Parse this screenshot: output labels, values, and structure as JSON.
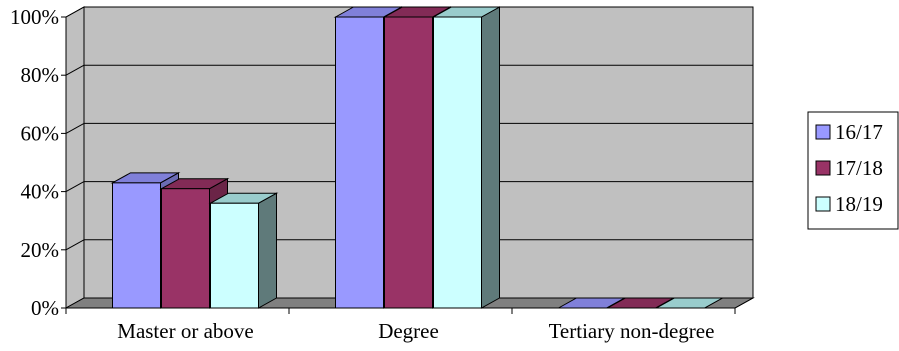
{
  "chart_data": {
    "type": "bar",
    "style": "3d-clustered-column",
    "categories": [
      "Master or above",
      "Degree",
      "Tertiary non-degree"
    ],
    "series": [
      {
        "name": "16/17",
        "values": [
          43,
          100,
          0
        ],
        "color": "#9999FF",
        "side_color": "#6B6BB3",
        "top_color": "#8080D9"
      },
      {
        "name": "17/18",
        "values": [
          41,
          100,
          0
        ],
        "color": "#993366",
        "side_color": "#6B2447",
        "top_color": "#822B56"
      },
      {
        "name": "18/19",
        "values": [
          36,
          100,
          0
        ],
        "color": "#CCFFFF",
        "side_color": "#5F7A7A",
        "top_color": "#99CCCC"
      }
    ],
    "ylim": [
      0,
      100
    ],
    "yticks": [
      "0%",
      "20%",
      "40%",
      "60%",
      "80%",
      "100%"
    ],
    "ytick_values": [
      0,
      20,
      40,
      60,
      80,
      100
    ],
    "grid": true,
    "legend_position": "right",
    "plot_background": "#C0C0C0",
    "wall_color": "#808080"
  }
}
